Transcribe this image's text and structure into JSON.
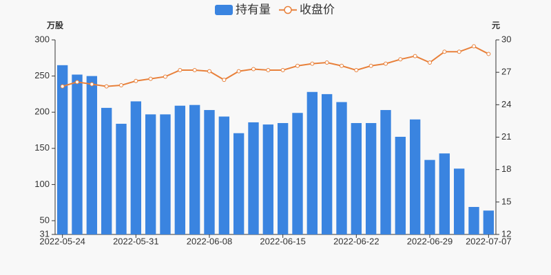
{
  "chart_data": {
    "type": "bar",
    "legend_position": "top",
    "categories": [
      "2022-05-24",
      null,
      null,
      null,
      null,
      "2022-05-31",
      null,
      null,
      null,
      null,
      "2022-06-08",
      null,
      null,
      null,
      null,
      "2022-06-15",
      null,
      null,
      null,
      null,
      "2022-06-22",
      null,
      null,
      null,
      null,
      "2022-06-29",
      null,
      null,
      null,
      "2022-07-07"
    ],
    "series": [
      {
        "name": "持有量",
        "type": "bar",
        "color": "#3a84e0",
        "values": [
          265,
          252,
          250,
          206,
          184,
          215,
          197,
          197,
          209,
          210,
          203,
          194,
          171,
          186,
          183,
          185,
          199,
          228,
          225,
          214,
          185,
          185,
          203,
          166,
          190,
          134,
          143,
          122,
          69,
          64
        ]
      },
      {
        "name": "收盘价",
        "type": "line",
        "axis": "y2",
        "color": "#e8803a",
        "values": [
          25.7,
          26.1,
          25.9,
          25.7,
          25.8,
          26.2,
          26.4,
          26.6,
          27.2,
          27.2,
          27.1,
          26.3,
          27.1,
          27.3,
          27.2,
          27.2,
          27.6,
          27.8,
          27.9,
          27.6,
          27.2,
          27.6,
          27.8,
          28.2,
          28.5,
          27.9,
          28.9,
          28.9,
          29.4,
          28.7
        ]
      }
    ],
    "y_label": "万股",
    "y2_label": "元",
    "ylim": [
      31,
      300
    ],
    "yticks": [
      31,
      50,
      100,
      150,
      200,
      250,
      300
    ],
    "y2lim": [
      12,
      30
    ],
    "y2ticks": [
      12,
      15,
      18,
      21,
      24,
      27,
      30
    ],
    "grid": false
  }
}
